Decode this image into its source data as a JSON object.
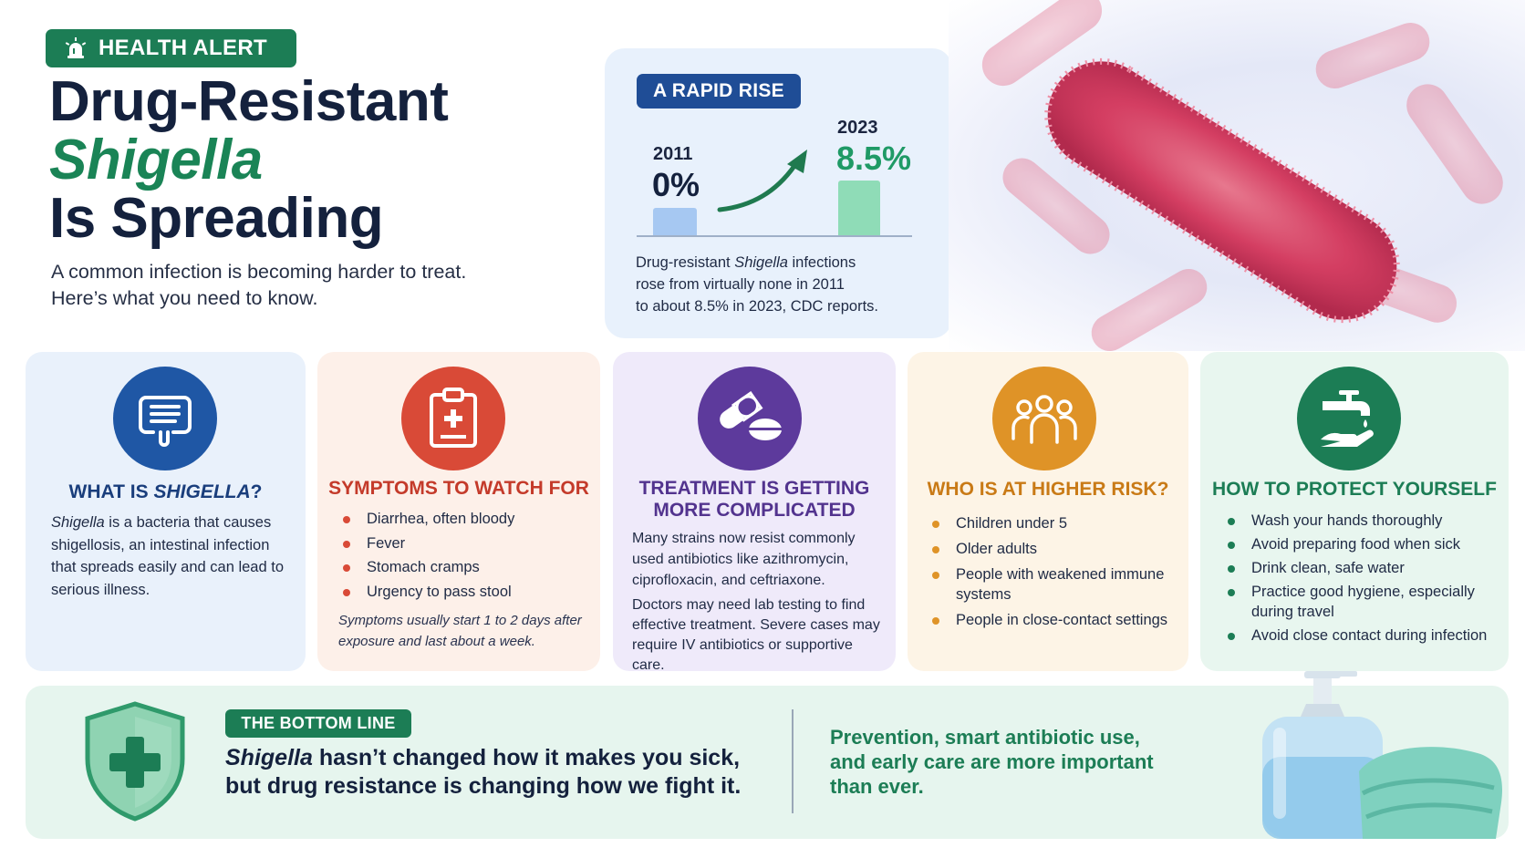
{
  "header": {
    "alert_label": "HEALTH ALERT",
    "title_line1": "Drug-Resistant",
    "title_line2": "Shigella",
    "title_line3": "Is Spreading",
    "subtitle_line1": "A common infection is becoming harder to treat.",
    "subtitle_line2": "Here’s what you need to know."
  },
  "rise": {
    "label": "A RAPID RISE",
    "year_a": "2011",
    "value_a": "0%",
    "year_b": "2023",
    "value_b": "8.5%",
    "desc_pre": "Drug-resistant ",
    "desc_em": "Shigella",
    "desc_post": " infections",
    "desc_line2": "rose from virtually none in 2011",
    "desc_line3": "to about 8.5% in 2023, CDC reports."
  },
  "cards": {
    "what": {
      "title_pre": "WHAT IS ",
      "title_em": "SHIGELLA",
      "title_post": "?",
      "body_em": "Shigella",
      "body": " is a bacteria that causes shigellosis, an intestinal infection that spreads easily and can lead to serious illness."
    },
    "symptoms": {
      "title": "SYMPTOMS TO WATCH FOR",
      "items": [
        "Diarrhea, often bloody",
        "Fever",
        "Stomach cramps",
        "Urgency to pass stool"
      ],
      "note": "Symptoms usually start 1 to 2 days after exposure and last about a week."
    },
    "treatment": {
      "title_line1": "TREATMENT IS GETTING",
      "title_line2": "MORE COMPLICATED",
      "body1": "Many strains now resist commonly used antibiotics like azithromycin, ciprofloxacin, and ceftriaxone.",
      "body2": "Doctors may need lab testing to find effective treatment. Severe cases may require IV antibiotics or supportive care."
    },
    "risk": {
      "title": "WHO IS AT HIGHER RISK?",
      "items": [
        "Children under 5",
        "Older adults",
        "People with weakened immune systems",
        "People in close-contact settings"
      ]
    },
    "protect": {
      "title": "HOW TO PROTECT YOURSELF",
      "items": [
        "Wash your hands thoroughly",
        "Avoid preparing food when sick",
        "Drink clean, safe water",
        "Practice good hygiene, especially during travel",
        "Avoid close contact during infection"
      ]
    }
  },
  "bottom": {
    "label": "THE BOTTOM LINE",
    "quote_em": "Shigella",
    "quote_line1_post": " hasn’t changed how it makes you sick,",
    "quote_line2": "but drug resistance is changing how we fight it.",
    "prevention": "Prevention, smart antibiotic use, and early care are more important than ever."
  },
  "icons": {
    "alert": "siren-icon",
    "what": "intestine-icon",
    "symptoms": "medical-clipboard-icon",
    "treatment": "pills-icon",
    "risk": "people-group-icon",
    "protect": "faucet-hand-icon",
    "bottom": "shield-cross-icon",
    "trend": "rising-arrow-icon"
  },
  "colors": {
    "green": "#1c7d55",
    "navy": "#14213d",
    "blue": "#1f57a5",
    "red": "#d94a37",
    "purple": "#5d3a9c",
    "orange": "#df9327"
  }
}
